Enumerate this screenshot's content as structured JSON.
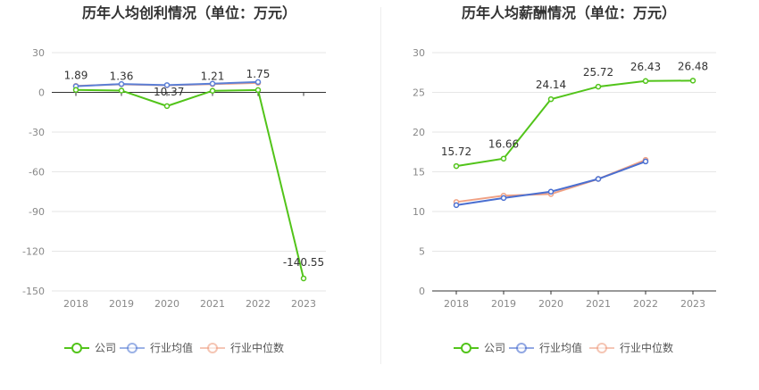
{
  "charts": [
    {
      "id": "profit",
      "title": "历年人均创利情况（单位：万元）",
      "chart_data": {
        "type": "line",
        "title": "历年人均创利情况（单位：万元）",
        "categories": [
          "2018",
          "2019",
          "2020",
          "2021",
          "2022",
          "2023"
        ],
        "ylim": [
          -150,
          30
        ],
        "yticks": [
          30,
          0,
          -30,
          -60,
          -90,
          -120,
          -150
        ],
        "grid": true,
        "legend_position": "bottom",
        "series": [
          {
            "name": "公司",
            "color": "#52c41a",
            "values": [
              1.89,
              1.36,
              -10.37,
              1.21,
              1.75,
              -140.55
            ],
            "labels": [
              "1.89",
              "1.36",
              "-10.37",
              "1.21",
              "1.75",
              "-140.55"
            ]
          },
          {
            "name": "行业均值",
            "color": "#5b7fd6",
            "values": [
              4.6,
              6.3,
              5.5,
              6.6,
              7.8,
              null
            ]
          },
          {
            "name": "行业中位数",
            "color": "#f0a184",
            "values": [
              4.9,
              6.1,
              5.3,
              6.2,
              7.2,
              null
            ]
          }
        ]
      }
    },
    {
      "id": "salary",
      "title": "历年人均薪酬情况（单位：万元）",
      "chart_data": {
        "type": "line",
        "title": "历年人均薪酬情况（单位：万元）",
        "categories": [
          "2018",
          "2019",
          "2020",
          "2021",
          "2022",
          "2023"
        ],
        "ylim": [
          0,
          30
        ],
        "yticks": [
          30,
          25,
          20,
          15,
          10,
          5,
          0
        ],
        "grid": true,
        "legend_position": "bottom",
        "series": [
          {
            "name": "公司",
            "color": "#52c41a",
            "values": [
              15.72,
              16.66,
              24.14,
              25.72,
              26.43,
              26.48
            ],
            "labels": [
              "15.72",
              "16.66",
              "24.14",
              "25.72",
              "26.43",
              "26.48"
            ]
          },
          {
            "name": "行业均值",
            "color": "#4a6fd1",
            "values": [
              10.8,
              11.7,
              12.5,
              14.1,
              16.3,
              null
            ]
          },
          {
            "name": "行业中位数",
            "color": "#f0a184",
            "values": [
              11.2,
              12.0,
              12.2,
              14.1,
              16.5,
              null
            ]
          }
        ]
      }
    }
  ]
}
